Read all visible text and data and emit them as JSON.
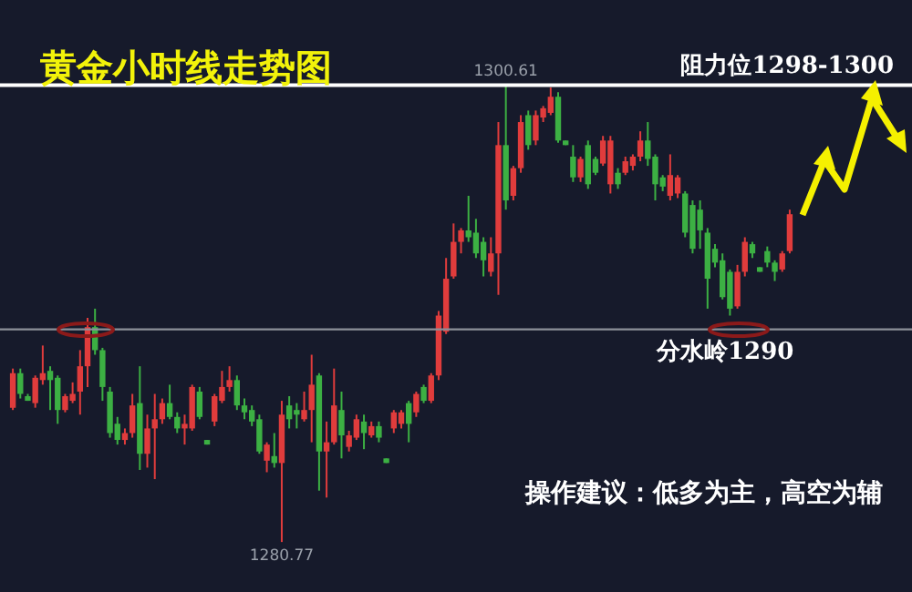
{
  "chart_data": {
    "type": "candlestick",
    "title": "黄金小时线走势图",
    "categories": [
      null,
      null,
      null,
      null,
      null,
      null,
      null,
      null,
      null,
      null,
      null,
      null,
      null,
      null,
      null,
      null,
      null,
      null,
      null,
      null,
      null,
      null,
      null,
      null,
      null,
      null,
      null,
      null,
      null,
      null,
      null,
      null,
      null,
      null,
      null,
      null,
      null,
      null,
      null,
      null,
      null,
      null,
      null,
      null,
      null,
      null,
      null,
      null,
      null,
      null,
      null,
      null,
      null,
      null,
      null,
      null,
      null,
      null,
      null,
      null,
      null,
      null,
      null,
      null,
      null,
      null,
      null,
      null,
      null,
      null,
      null,
      null,
      null,
      null,
      null,
      null,
      null,
      null,
      null,
      null,
      null,
      null,
      null,
      null,
      null,
      null,
      null,
      null,
      null,
      null,
      null,
      null,
      null,
      null,
      null,
      null,
      null,
      null,
      null,
      null,
      null,
      null,
      null,
      null,
      null
    ],
    "ohlc": [
      [
        1286.6,
        1288.3,
        1286.5,
        1288.1
      ],
      [
        1288.1,
        1288.3,
        1287.0,
        1287.2
      ],
      [
        1287.1,
        1287.2,
        1286.9,
        1286.9
      ],
      [
        1286.8,
        1288.0,
        1286.6,
        1287.9
      ],
      [
        1287.8,
        1289.3,
        1287.6,
        1288.1
      ],
      [
        1288.2,
        1288.4,
        1286.5,
        1287.8
      ],
      [
        1287.9,
        1288.0,
        1285.9,
        1286.5
      ],
      [
        1286.5,
        1287.2,
        1286.4,
        1287.1
      ],
      [
        1286.9,
        1287.7,
        1286.8,
        1287.2
      ],
      [
        1287.3,
        1289.1,
        1286.3,
        1288.4
      ],
      [
        1288.4,
        1290.5,
        1287.5,
        1290.1
      ],
      [
        1290.1,
        1290.9,
        1288.9,
        1289.1
      ],
      [
        1289.1,
        1289.2,
        1286.9,
        1287.5
      ],
      [
        1287.3,
        1287.5,
        1285.3,
        1285.5
      ],
      [
        1285.9,
        1286.2,
        1285.0,
        1285.2
      ],
      [
        1285.2,
        1285.7,
        1285.0,
        1285.5
      ],
      [
        1285.5,
        1287.2,
        1285.3,
        1286.7
      ],
      [
        1286.8,
        1288.4,
        1283.9,
        1284.6
      ],
      [
        1284.6,
        1286.3,
        1284.0,
        1285.7
      ],
      [
        1285.7,
        1287.2,
        1283.5,
        1286.1
      ],
      [
        1286.1,
        1287.0,
        1285.9,
        1286.8
      ],
      [
        1286.8,
        1287.6,
        1286.1,
        1286.2
      ],
      [
        1286.2,
        1286.4,
        1285.5,
        1285.7
      ],
      [
        1285.7,
        1286.3,
        1285.0,
        1285.9
      ],
      [
        1285.7,
        1287.6,
        1285.6,
        1287.5
      ],
      [
        1287.3,
        1287.5,
        1286.1,
        1286.2
      ],
      [
        1285.2,
        1285.2,
        1285.0,
        1285.0
      ],
      [
        1286.0,
        1287.2,
        1285.8,
        1287.1
      ],
      [
        1286.9,
        1288.2,
        1286.8,
        1287.5
      ],
      [
        1287.5,
        1288.4,
        1287.3,
        1287.8
      ],
      [
        1287.8,
        1288.0,
        1286.5,
        1286.7
      ],
      [
        1286.7,
        1287.0,
        1286.1,
        1286.4
      ],
      [
        1286.5,
        1286.7,
        1285.8,
        1286.0
      ],
      [
        1286.1,
        1286.3,
        1284.6,
        1284.7
      ],
      [
        1284.3,
        1285.1,
        1283.8,
        1285.0
      ],
      [
        1284.5,
        1285.5,
        1284.0,
        1284.2
      ],
      [
        1284.2,
        1286.9,
        1280.77,
        1286.3
      ],
      [
        1286.7,
        1287.1,
        1285.7,
        1286.1
      ],
      [
        1286.5,
        1286.8,
        1285.7,
        1286.3
      ],
      [
        1286.1,
        1287.3,
        1286.0,
        1286.5
      ],
      [
        1286.5,
        1288.9,
        1285.1,
        1287.6
      ],
      [
        1288.0,
        1288.1,
        1283.0,
        1284.7
      ],
      [
        1284.7,
        1286.0,
        1282.7,
        1285.1
      ],
      [
        1285.1,
        1288.3,
        1285.0,
        1286.7
      ],
      [
        1286.5,
        1287.3,
        1284.4,
        1285.4
      ],
      [
        1284.9,
        1285.6,
        1284.7,
        1285.4
      ],
      [
        1285.3,
        1286.3,
        1285.2,
        1286.1
      ],
      [
        1286.0,
        1286.3,
        1284.8,
        1285.5
      ],
      [
        1285.4,
        1286.0,
        1285.3,
        1285.8
      ],
      [
        1285.8,
        1286.0,
        1285.1,
        1285.3
      ],
      [
        1284.4,
        1284.4,
        1284.2,
        1284.2
      ],
      [
        1285.7,
        1286.5,
        1285.5,
        1286.4
      ],
      [
        1285.9,
        1286.5,
        1285.7,
        1286.4
      ],
      [
        1286.8,
        1286.9,
        1285.1,
        1285.9
      ],
      [
        1286.4,
        1287.3,
        1286.2,
        1287.2
      ],
      [
        1287.5,
        1287.6,
        1286.8,
        1286.9
      ],
      [
        1286.9,
        1288.1,
        1286.8,
        1288.0
      ],
      [
        1288.0,
        1290.8,
        1287.8,
        1290.6
      ],
      [
        1289.9,
        1293.1,
        1289.8,
        1292.2
      ],
      [
        1292.3,
        1294.6,
        1292.2,
        1293.8
      ],
      [
        1293.8,
        1294.4,
        1293.3,
        1294.3
      ],
      [
        1294.3,
        1295.8,
        1293.8,
        1294.0
      ],
      [
        1294.2,
        1294.8,
        1293.1,
        1293.3
      ],
      [
        1293.8,
        1294.0,
        1292.3,
        1293.0
      ],
      [
        1292.5,
        1294.0,
        1292.3,
        1293.3
      ],
      [
        1293.3,
        1299.0,
        1291.5,
        1298.0
      ],
      [
        1298.0,
        1300.61,
        1295.2,
        1295.6
      ],
      [
        1295.8,
        1297.1,
        1295.6,
        1297.0
      ],
      [
        1297.0,
        1299.3,
        1296.8,
        1299.0
      ],
      [
        1299.3,
        1299.5,
        1297.8,
        1298.0
      ],
      [
        1298.2,
        1299.5,
        1298.0,
        1299.3
      ],
      [
        1299.2,
        1299.7,
        1299.0,
        1299.6
      ],
      [
        1299.4,
        1300.5,
        1299.3,
        1300.1
      ],
      [
        1300.1,
        1300.3,
        1298.1,
        1298.2
      ],
      [
        1298.2,
        1298.2,
        1298.0,
        1298.0
      ],
      [
        1297.5,
        1298.0,
        1296.4,
        1296.6
      ],
      [
        1296.6,
        1297.5,
        1296.4,
        1297.4
      ],
      [
        1298.0,
        1298.2,
        1296.1,
        1296.3
      ],
      [
        1297.4,
        1297.5,
        1296.7,
        1296.8
      ],
      [
        1297.2,
        1298.4,
        1297.1,
        1298.2
      ],
      [
        1296.3,
        1298.4,
        1295.9,
        1298.2
      ],
      [
        1296.8,
        1297.0,
        1296.1,
        1296.3
      ],
      [
        1296.8,
        1297.5,
        1296.7,
        1297.3
      ],
      [
        1297.1,
        1297.6,
        1296.9,
        1297.5
      ],
      [
        1297.5,
        1298.6,
        1297.3,
        1298.2
      ],
      [
        1298.2,
        1299.0,
        1297.1,
        1297.4
      ],
      [
        1297.5,
        1297.6,
        1295.6,
        1296.3
      ],
      [
        1296.6,
        1296.7,
        1296.0,
        1296.2
      ],
      [
        1295.8,
        1297.6,
        1295.6,
        1296.7
      ],
      [
        1295.9,
        1296.7,
        1295.7,
        1296.6
      ],
      [
        1295.9,
        1296.0,
        1294.0,
        1294.2
      ],
      [
        1295.4,
        1295.6,
        1293.3,
        1293.5
      ],
      [
        1295.2,
        1295.6,
        1293.5,
        1294.3
      ],
      [
        1294.2,
        1294.4,
        1290.9,
        1292.2
      ],
      [
        1293.5,
        1293.7,
        1292.7,
        1292.9
      ],
      [
        1293.0,
        1293.3,
        1291.3,
        1291.4
      ],
      [
        1292.5,
        1292.6,
        1290.6,
        1290.9
      ],
      [
        1291.0,
        1292.8,
        1290.9,
        1292.5
      ],
      [
        1292.5,
        1294.0,
        1292.3,
        1293.8
      ],
      [
        1293.7,
        1293.8,
        1293.1,
        1293.3
      ],
      [
        1292.7,
        1292.7,
        1292.5,
        1292.5
      ],
      [
        1293.4,
        1293.6,
        1292.7,
        1292.9
      ],
      [
        1292.9,
        1293.0,
        1292.1,
        1292.5
      ],
      [
        1292.6,
        1293.4,
        1292.5,
        1293.3
      ],
      [
        1293.4,
        1295.2,
        1293.3,
        1295.0
      ]
    ],
    "colors": [
      "#e03c3c",
      "#3cb043",
      "#3cb043",
      "#e03c3c",
      "#e03c3c",
      "#3cb043",
      "#3cb043",
      "#e03c3c",
      "#e03c3c",
      "#e03c3c",
      "#e03c3c",
      "#3cb043",
      "#3cb043",
      "#3cb043",
      "#3cb043",
      "#e03c3c",
      "#e03c3c",
      "#3cb043",
      "#e03c3c",
      "#e03c3c",
      "#e03c3c",
      "#3cb043",
      "#3cb043",
      "#e03c3c",
      "#e03c3c",
      "#3cb043",
      "#3cb043",
      "#e03c3c",
      "#e03c3c",
      "#e03c3c",
      "#3cb043",
      "#3cb043",
      "#3cb043",
      "#3cb043",
      "#e03c3c",
      "#3cb043",
      "#e03c3c",
      "#3cb043",
      "#3cb043",
      "#e03c3c",
      "#e03c3c",
      "#3cb043",
      "#e03c3c",
      "#e03c3c",
      "#3cb043",
      "#e03c3c",
      "#e03c3c",
      "#3cb043",
      "#e03c3c",
      "#3cb043",
      "#3cb043",
      "#e03c3c",
      "#e03c3c",
      "#3cb043",
      "#e03c3c",
      "#3cb043",
      "#e03c3c",
      "#e03c3c",
      "#e03c3c",
      "#e03c3c",
      "#e03c3c",
      "#3cb043",
      "#3cb043",
      "#3cb043",
      "#e03c3c",
      "#e03c3c",
      "#3cb043",
      "#e03c3c",
      "#e03c3c",
      "#3cb043",
      "#e03c3c",
      "#e03c3c",
      "#e03c3c",
      "#3cb043",
      "#3cb043",
      "#3cb043",
      "#e03c3c",
      "#3cb043",
      "#3cb043",
      "#e03c3c",
      "#e03c3c",
      "#3cb043",
      "#e03c3c",
      "#e03c3c",
      "#e03c3c",
      "#3cb043",
      "#3cb043",
      "#3cb043",
      "#e03c3c",
      "#e03c3c",
      "#3cb043",
      "#3cb043",
      "#3cb043",
      "#3cb043",
      "#3cb043",
      "#3cb043",
      "#3cb043",
      "#e03c3c",
      "#e03c3c",
      "#3cb043",
      "#3cb043",
      "#3cb043",
      "#3cb043",
      "#e03c3c",
      "#e03c3c"
    ],
    "ylim": [
      1278.6,
      1304.3
    ],
    "tick_labels": false,
    "ref_lines": [
      {
        "axis": "y",
        "value": 1290,
        "label": "分水岭1290",
        "color": "#8c9099"
      },
      {
        "axis": "y",
        "value": 1300.6,
        "label": "阻力位1298-1300",
        "color": "#ffffff"
      }
    ],
    "annotations": [
      {
        "text": "1300.61",
        "y": 1300.61
      },
      {
        "text": "1280.77",
        "y": 1280.77
      },
      "操作建议：低多为主，高空为辅"
    ]
  }
}
